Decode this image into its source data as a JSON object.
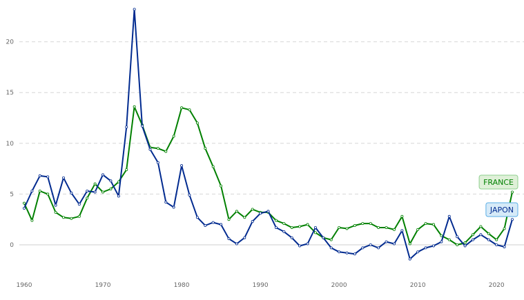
{
  "chart_data": {
    "type": "line",
    "x": [
      1960,
      1961,
      1962,
      1963,
      1964,
      1965,
      1966,
      1967,
      1968,
      1969,
      1970,
      1971,
      1972,
      1973,
      1974,
      1975,
      1976,
      1977,
      1978,
      1979,
      1980,
      1981,
      1982,
      1983,
      1984,
      1985,
      1986,
      1987,
      1988,
      1989,
      1990,
      1991,
      1992,
      1993,
      1994,
      1995,
      1996,
      1997,
      1998,
      1999,
      2000,
      2001,
      2002,
      2003,
      2004,
      2005,
      2006,
      2007,
      2008,
      2009,
      2010,
      2011,
      2012,
      2013,
      2014,
      2015,
      2016,
      2017,
      2018,
      2019,
      2020,
      2021,
      2022
    ],
    "series": [
      {
        "name": "FRANCE",
        "color": "#008000",
        "values": [
          4.1,
          2.4,
          5.3,
          5.0,
          3.2,
          2.7,
          2.6,
          2.8,
          4.6,
          6.0,
          5.2,
          5.5,
          6.2,
          7.4,
          13.6,
          11.8,
          9.6,
          9.5,
          9.2,
          10.7,
          13.5,
          13.3,
          12.0,
          9.5,
          7.7,
          5.8,
          2.5,
          3.3,
          2.7,
          3.5,
          3.2,
          3.2,
          2.4,
          2.1,
          1.7,
          1.8,
          2.0,
          1.2,
          0.7,
          0.5,
          1.7,
          1.6,
          1.9,
          2.1,
          2.1,
          1.7,
          1.7,
          1.5,
          2.8,
          0.1,
          1.5,
          2.1,
          2.0,
          0.9,
          0.5,
          0.0,
          0.2,
          1.0,
          1.8,
          1.1,
          0.5,
          1.6,
          5.2
        ]
      },
      {
        "name": "JAPON",
        "color": "#002a8f",
        "values": [
          3.6,
          5.3,
          6.8,
          6.7,
          3.9,
          6.6,
          5.1,
          4.0,
          5.3,
          5.2,
          6.9,
          6.3,
          4.8,
          11.6,
          23.2,
          11.7,
          9.4,
          8.1,
          4.2,
          3.7,
          7.8,
          4.9,
          2.7,
          1.9,
          2.2,
          2.0,
          0.6,
          0.1,
          0.7,
          2.3,
          3.1,
          3.3,
          1.7,
          1.3,
          0.7,
          -0.1,
          0.1,
          1.7,
          0.7,
          -0.3,
          -0.7,
          -0.8,
          -0.9,
          -0.3,
          0.0,
          -0.3,
          0.3,
          0.1,
          1.4,
          -1.4,
          -0.7,
          -0.3,
          -0.1,
          0.3,
          2.8,
          0.8,
          -0.1,
          0.5,
          1.0,
          0.5,
          0.0,
          -0.2,
          2.5
        ]
      }
    ],
    "x_ticks": [
      "1960",
      "1970",
      "1980",
      "1990",
      "2000",
      "2010",
      "2020"
    ],
    "y_ticks": [
      "0",
      "5",
      "10",
      "15",
      "20"
    ],
    "xlim": [
      1959.5,
      2023.5
    ],
    "ylim": [
      -2,
      23.5
    ],
    "grid": "horizontal dashed",
    "legend": "end-of-line labels"
  }
}
